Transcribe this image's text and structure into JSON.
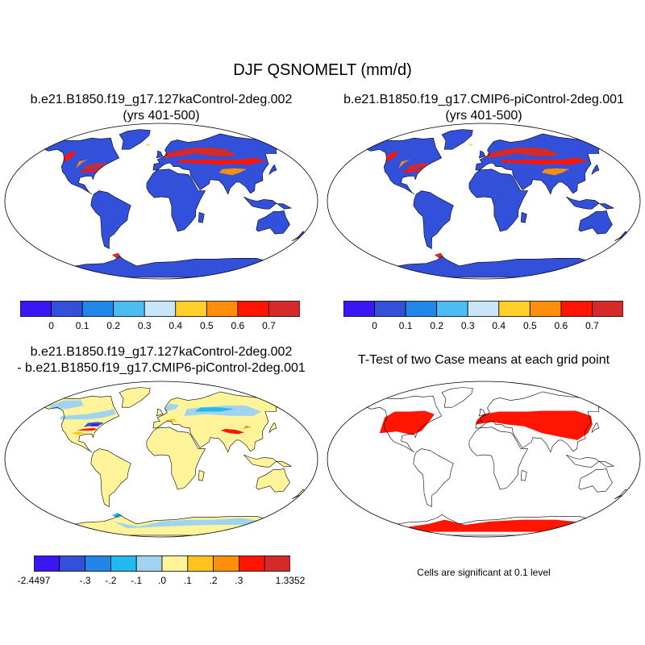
{
  "title": "DJF QSNOMELT (mm/d)",
  "panels": [
    {
      "id": "case1",
      "title_line1": "b.e21.B1850.f19_g17.127kaControl-2deg.002",
      "title_line2": "(yrs 401-500)"
    },
    {
      "id": "case2",
      "title_line1": "b.e21.B1850.f19_g17.CMIP6-piControl-2deg.001",
      "title_line2": "(yrs 401-500)"
    },
    {
      "id": "diff",
      "title_line1": "b.e21.B1850.f19_g17.127kaControl-2deg.002",
      "title_line2": "- b.e21.B1850.f19_g17.CMIP6-piControl-2deg.001"
    },
    {
      "id": "ttest",
      "title_line1": "T-Test of two Case means at each grid point",
      "title_line2": ""
    }
  ],
  "colorbar_case": {
    "colors": [
      "#3b16f5",
      "#3350da",
      "#2086e8",
      "#4bbdf2",
      "#c8e6f6",
      "#ffd02a",
      "#ff8f0a",
      "#ff1500",
      "#d42a2a"
    ],
    "labels": [
      "0",
      "0.1",
      "0.2",
      "0.3",
      "0.4",
      "0.5",
      "0.6",
      "0.7"
    ]
  },
  "colorbar_diff": {
    "colors": [
      "#3b16f5",
      "#3350da",
      "#2086e8",
      "#22b8f0",
      "#9fd3ef",
      "#fff49a",
      "#ffc21f",
      "#ff8f0a",
      "#ff1500",
      "#d42a2a"
    ],
    "labels": [
      "-2.4497",
      "-.3",
      "-.2",
      "-.1",
      ".0",
      ".1",
      ".2",
      ".3",
      "1.3352"
    ]
  },
  "note": "Cells are significant at 0.1 level",
  "colors": {
    "ocean_case": "#ffffff",
    "land_base_case": "#3350da",
    "land_base_diff": "#fff49a",
    "significant": "#ff1500",
    "coast": "#000000"
  }
}
